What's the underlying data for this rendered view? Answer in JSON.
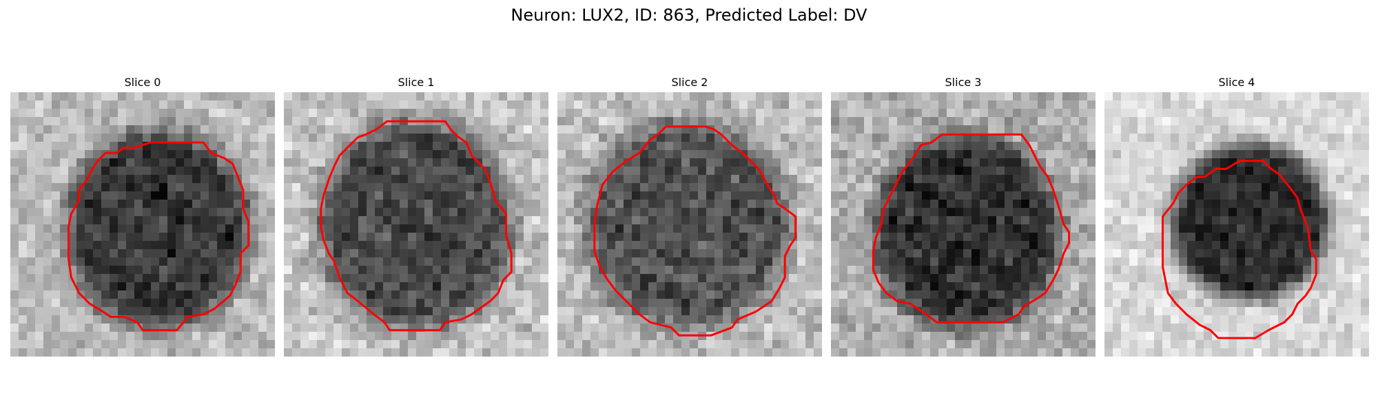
{
  "figure": {
    "title": "Neuron: LUX2, ID: 863, Predicted Label: DV"
  },
  "panels": [
    {
      "title": "Slice 0"
    },
    {
      "title": "Slice 1"
    },
    {
      "title": "Slice 2"
    },
    {
      "title": "Slice 3"
    },
    {
      "title": "Slice 4"
    }
  ],
  "colors": {
    "contour": "#ff0000",
    "background": "#ffffff",
    "text": "#000000"
  }
}
